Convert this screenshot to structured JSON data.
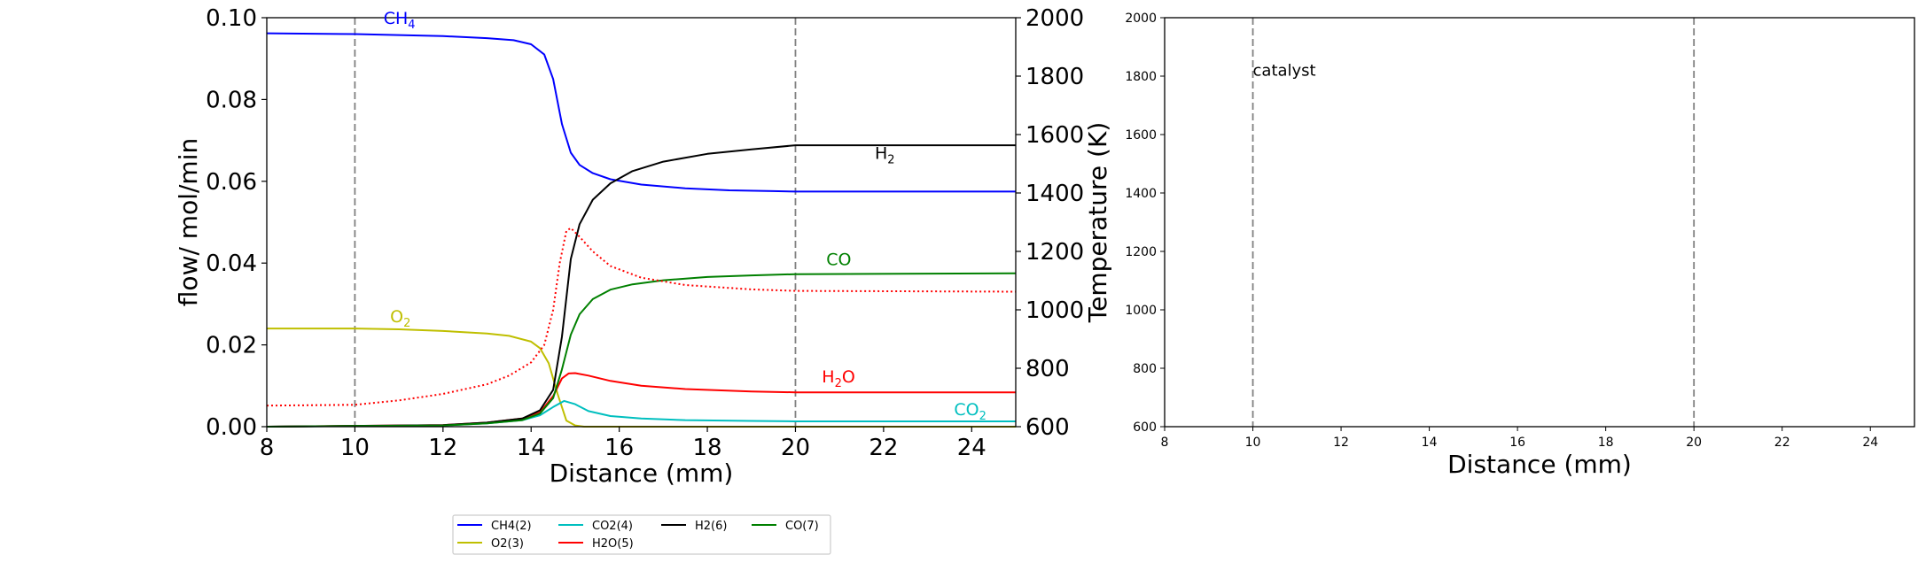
{
  "chart_data": [
    {
      "type": "line",
      "xlabel": "Distance (mm)",
      "ylabel": "flow/ mol/min",
      "y2label": "Temperature (K)",
      "xlim": [
        8,
        25
      ],
      "ylim": [
        0,
        0.1
      ],
      "y2lim": [
        600,
        2000
      ],
      "xticks": [
        "8",
        "10",
        "12",
        "14",
        "16",
        "18",
        "20",
        "22",
        "24"
      ],
      "yticks": [
        "0.00",
        "0.02",
        "0.04",
        "0.06",
        "0.08",
        "0.10"
      ],
      "y2ticks": [
        "600",
        "800",
        "1000",
        "1200",
        "1400",
        "1600",
        "1800",
        "2000"
      ],
      "vlines": [
        10,
        20
      ],
      "series": [
        {
          "name": "CH4(2)",
          "color": "#0000ff",
          "style": "solid",
          "x": [
            8,
            10,
            12,
            13,
            13.6,
            14,
            14.3,
            14.5,
            14.7,
            14.9,
            15.1,
            15.4,
            15.8,
            16.5,
            17.5,
            18.5,
            19.5,
            20,
            22,
            25
          ],
          "y": [
            0.0962,
            0.096,
            0.0955,
            0.095,
            0.0945,
            0.0935,
            0.091,
            0.085,
            0.074,
            0.067,
            0.064,
            0.062,
            0.0605,
            0.0592,
            0.0583,
            0.0578,
            0.0576,
            0.0575,
            0.0575,
            0.0575
          ]
        },
        {
          "name": "O2(3)",
          "color": "#bfbf00",
          "style": "solid",
          "x": [
            8,
            10,
            11,
            12,
            13,
            13.5,
            14,
            14.2,
            14.4,
            14.6,
            14.8,
            15,
            15.2,
            25
          ],
          "y": [
            0.024,
            0.024,
            0.0238,
            0.0234,
            0.0228,
            0.0222,
            0.0208,
            0.0192,
            0.0155,
            0.008,
            0.0015,
            0.0003,
            0,
            0
          ]
        },
        {
          "name": "CO2(4)",
          "color": "#00bfbf",
          "style": "solid",
          "x": [
            8,
            12,
            13,
            13.8,
            14.2,
            14.5,
            14.75,
            15,
            15.3,
            15.8,
            16.5,
            17.5,
            19,
            20,
            25
          ],
          "y": [
            0,
            0.0003,
            0.0008,
            0.0016,
            0.0028,
            0.0048,
            0.0063,
            0.0055,
            0.0038,
            0.0026,
            0.002,
            0.0016,
            0.0014,
            0.0013,
            0.0013
          ]
        },
        {
          "name": "H2O(5)",
          "color": "#ff0000",
          "style": "solid",
          "x": [
            8,
            12,
            13,
            13.8,
            14.2,
            14.5,
            14.7,
            14.85,
            15,
            15.3,
            15.8,
            16.5,
            17.5,
            19,
            20,
            25
          ],
          "y": [
            0,
            0.0004,
            0.001,
            0.002,
            0.0035,
            0.0075,
            0.0118,
            0.013,
            0.0131,
            0.0125,
            0.0112,
            0.01,
            0.0092,
            0.0086,
            0.0084,
            0.0084
          ]
        },
        {
          "name": "H2(6)",
          "color": "#000000",
          "style": "solid",
          "x": [
            8,
            12,
            13,
            13.8,
            14.2,
            14.5,
            14.7,
            14.9,
            15.1,
            15.4,
            15.8,
            16.3,
            17,
            18,
            19,
            20,
            25
          ],
          "y": [
            0,
            0.0004,
            0.001,
            0.002,
            0.004,
            0.009,
            0.022,
            0.041,
            0.0495,
            0.0555,
            0.0595,
            0.0625,
            0.0648,
            0.0667,
            0.0678,
            0.0688,
            0.0688
          ]
        },
        {
          "name": "CO(7)",
          "color": "#008000",
          "style": "solid",
          "x": [
            8,
            12,
            13,
            13.8,
            14.2,
            14.5,
            14.7,
            14.9,
            15.1,
            15.4,
            15.8,
            16.3,
            17,
            18,
            19,
            20,
            25
          ],
          "y": [
            0,
            0.0003,
            0.0008,
            0.0016,
            0.0032,
            0.007,
            0.014,
            0.0225,
            0.0275,
            0.0312,
            0.0335,
            0.0348,
            0.0358,
            0.0366,
            0.037,
            0.0373,
            0.0375
          ]
        },
        {
          "name": "",
          "axis": "right",
          "color": "#ff0000",
          "style": "dotted",
          "x": [
            8,
            10,
            11,
            12,
            13,
            13.5,
            14,
            14.3,
            14.5,
            14.65,
            14.8,
            14.9,
            15.1,
            15.4,
            15.8,
            16.5,
            17.5,
            19,
            20,
            25
          ],
          "y": [
            672,
            675,
            690,
            712,
            745,
            775,
            820,
            880,
            1000,
            1160,
            1270,
            1280,
            1250,
            1200,
            1150,
            1110,
            1085,
            1070,
            1065,
            1062
          ]
        }
      ],
      "annotations": [
        {
          "text": "CH",
          "sub": "4",
          "color": "#0000ff",
          "x": 10.65,
          "y": 0.0985
        },
        {
          "text": "H",
          "sub": "2",
          "color": "#000000",
          "x": 21.8,
          "y": 0.0655
        },
        {
          "text": "CO",
          "sub": "",
          "color": "#008000",
          "x": 20.7,
          "y": 0.0395
        },
        {
          "text": "O",
          "sub": "2",
          "color": "#bfbf00",
          "x": 10.8,
          "y": 0.0255
        },
        {
          "text": "H",
          "sub": "2",
          "tail": "O",
          "color": "#ff0000",
          "x": 20.6,
          "y": 0.0108
        },
        {
          "text": "CO",
          "sub": "2",
          "color": "#00bfbf",
          "x": 23.6,
          "y": 0.0028
        }
      ],
      "legend": {
        "placement": "bottom-center",
        "entries": [
          {
            "label": "CH4(2)",
            "color": "#0000ff"
          },
          {
            "label": "CO2(4)",
            "color": "#00bfbf"
          },
          {
            "label": "H2(6)",
            "color": "#000000"
          },
          {
            "label": "CO(7)",
            "color": "#008000"
          },
          {
            "label": "O2(3)",
            "color": "#bfbf00"
          },
          {
            "label": "H2O(5)",
            "color": "#ff0000"
          }
        ]
      }
    },
    {
      "type": "line",
      "xlabel": "Distance (mm)",
      "ylabel": "",
      "xlim": [
        8,
        25
      ],
      "ylim": [
        600,
        2000
      ],
      "xticks": [
        "8",
        "10",
        "12",
        "14",
        "16",
        "18",
        "20",
        "22",
        "24"
      ],
      "yticks": [
        "600",
        "800",
        "1000",
        "1200",
        "1400",
        "1600",
        "1800",
        "2000"
      ],
      "vlines": [
        10,
        20
      ],
      "annotations": [
        {
          "text": "catalyst",
          "x": 10,
          "y": 1820
        }
      ],
      "series": []
    }
  ]
}
